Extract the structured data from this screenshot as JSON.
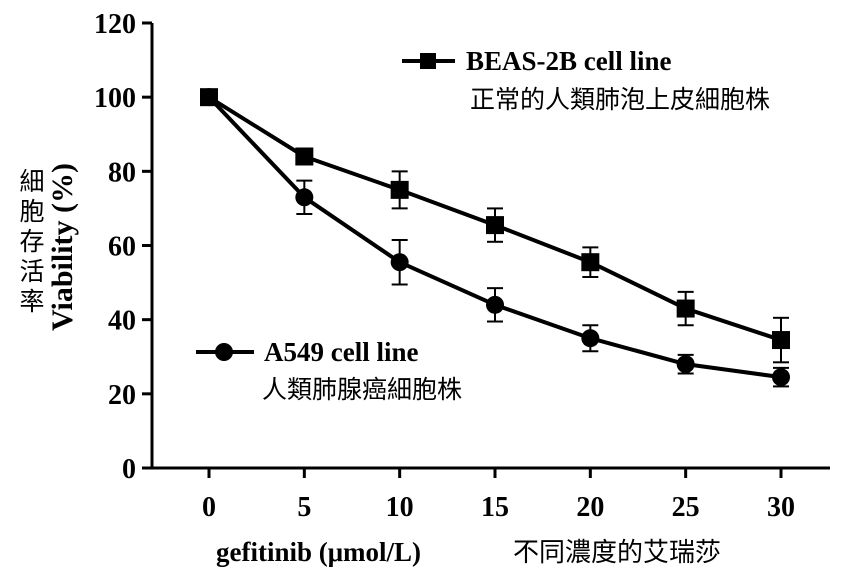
{
  "chart_data": {
    "type": "line",
    "title": "",
    "xlabel": "gefitinib (μmol/L)",
    "xlabel_cjk": "不同濃度的艾瑞莎",
    "ylabel": "Viability (%)",
    "ylabel_cjk": "細胞存活率",
    "x": [
      0,
      5,
      10,
      15,
      20,
      25,
      30
    ],
    "xticks": [
      "0",
      "5",
      "10",
      "15",
      "20",
      "25",
      "30"
    ],
    "yticks": [
      "0",
      "20",
      "40",
      "60",
      "80",
      "100",
      "120"
    ],
    "xlim": [
      0,
      30
    ],
    "ylim": [
      0,
      120
    ],
    "grid": false,
    "series": [
      {
        "name": "BEAS-2B cell line",
        "name_cjk": "正常的人類肺泡上皮細胞株",
        "marker": "square",
        "values": [
          100,
          84,
          75,
          65.5,
          55.5,
          43,
          34.5
        ],
        "errors": [
          0,
          0,
          5,
          4.5,
          4,
          4.5,
          6
        ],
        "color": "#000000"
      },
      {
        "name": "A549 cell line",
        "name_cjk": "人類肺腺癌細胞株",
        "marker": "circle",
        "values": [
          100,
          73,
          55.5,
          44,
          35,
          28,
          24.5
        ],
        "errors": [
          0,
          4.5,
          6,
          4.5,
          3.5,
          2.5,
          2.5
        ],
        "color": "#000000"
      }
    ]
  }
}
